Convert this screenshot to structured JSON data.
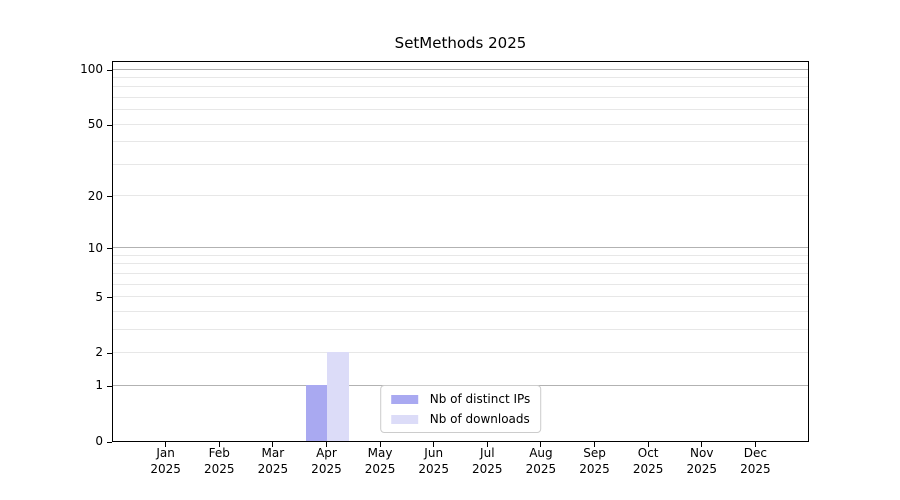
{
  "chart_data": {
    "type": "bar",
    "title": "SetMethods 2025",
    "categories": [
      "Jan 2025",
      "Feb 2025",
      "Mar 2025",
      "Apr 2025",
      "May 2025",
      "Jun 2025",
      "Jul 2025",
      "Aug 2025",
      "Sep 2025",
      "Oct 2025",
      "Nov 2025",
      "Dec 2025"
    ],
    "series": [
      {
        "name": "Nb of distinct IPs",
        "color": "#a9a9f1",
        "values": [
          0,
          0,
          0,
          1,
          0,
          0,
          0,
          0,
          0,
          0,
          0,
          0
        ]
      },
      {
        "name": "Nb of downloads",
        "color": "#dcdcf8",
        "values": [
          0,
          0,
          0,
          2,
          0,
          0,
          0,
          0,
          0,
          0,
          0,
          0
        ]
      }
    ],
    "yscale": "log1p",
    "ylim": [
      0,
      112
    ],
    "xlim": [
      -1,
      12
    ],
    "bar_width_month_units": 0.4,
    "y_tick_values": [
      0,
      1,
      2,
      5,
      10,
      20,
      50,
      100
    ],
    "y_tick_labels": [
      "0",
      "1",
      "2",
      "5",
      "10",
      "20",
      "50",
      "100"
    ],
    "grid": {
      "major_values": [
        1,
        10,
        100
      ],
      "minor_values": [
        2,
        3,
        4,
        5,
        6,
        7,
        8,
        9,
        20,
        30,
        40,
        50,
        60,
        70,
        80,
        90
      ],
      "major_color": "#b2b2b2",
      "minor_color": "#e7e7e7"
    },
    "legend": {
      "position": "lower center",
      "entries": [
        "Nb of distinct IPs",
        "Nb of downloads"
      ]
    },
    "axis_color": "#000000",
    "background": "#ffffff"
  }
}
